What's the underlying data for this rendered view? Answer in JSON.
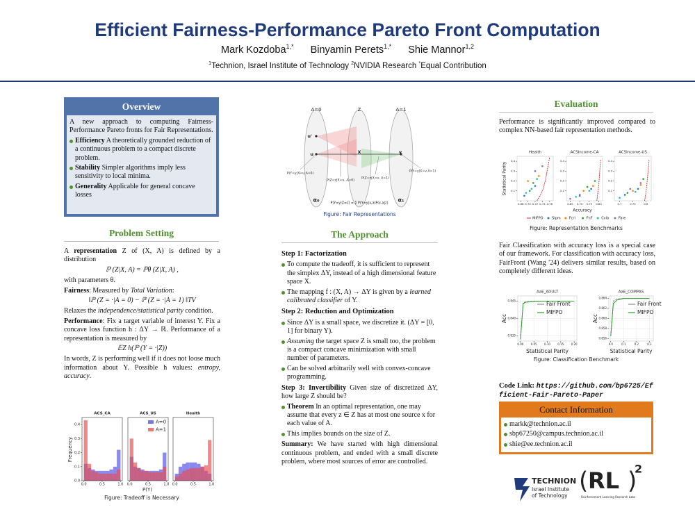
{
  "header": {
    "title": "Efficient Fairness-Performance Pareto Front Computation",
    "authors": [
      {
        "name": "Mark Kozdoba",
        "sup": "1,*"
      },
      {
        "name": "Binyamin Perets",
        "sup": "1,*"
      },
      {
        "name": "Shie Mannor",
        "sup": "1,2"
      }
    ],
    "affiliations": [
      {
        "sup": "1",
        "text": "Technion, Israel Institute of Technology"
      },
      {
        "sup": "2",
        "text": "NVIDIA Research"
      },
      {
        "sup": "*",
        "text": "Equal Contribution"
      }
    ]
  },
  "overview": {
    "title": "Overview",
    "intro": "A new approach to computing Fairness-Performance Pareto fronts for Fair Representations.",
    "items": [
      {
        "term": "Efficiency",
        "text": "A theoretically grounded reduction of a continuous problem to a compact discrete problem."
      },
      {
        "term": "Stability",
        "text": "Simpler algorithms imply less sensitivity to local minima."
      },
      {
        "term": "Generality",
        "text": "Applicable for general concave losses"
      }
    ]
  },
  "problem_setting": {
    "title": "Problem Setting",
    "p0": [
      "A",
      "representation",
      "Z of (X, A) is defined by a distribution"
    ],
    "eq0": "ℙ (Z|X, A) = ℙθ (Z|X, A) ,",
    "p1": "with parameters θ.",
    "p2": [
      "Fairness",
      ": Measured by",
      "Total Variation",
      ":"
    ],
    "eq1": "‖ℙ (Z = ·|A = 0) − ℙ (Z = ·|A = 1) ‖TV",
    "p3": [
      "Relaxes the",
      "independence/statistical parity",
      "condition."
    ],
    "p4": [
      "Performance",
      ": Fix a target variable of interest Y. Fix a concave loss function h : ΔY → ℝ. Performance of a representation is measured by"
    ],
    "eq2": "𝔼Z h(ℙ (Y = ·|Z))",
    "p5": [
      "In words, Z is performing well if it does not loose much information about Y. Possible h values:",
      "entropy, accuracy",
      "."
    ]
  },
  "diagram": {
    "labels": {
      "a0": "A=0",
      "z": "Z",
      "a1": "A=1",
      "u_prime": "u'",
      "u": "u",
      "x": "X",
      "v": "v",
      "py_u": "P(Y=y|X=u,A=0)",
      "pz_u": "P(Z=z|X=u, A=0)",
      "pz_v": "P(Z=z|X=v, A=1)",
      "py_v": "P(Y=y|X=v,A=1)",
      "alpha0": "α₀",
      "alpha1": "α₁",
      "formula": "P(Y=y|Z=z) = Σ P(Y=y|x,a)P(x,a|z)"
    },
    "caption": "Figure: Fair Representations"
  },
  "approach": {
    "title": "The Approach",
    "steps": [
      {
        "title": "Step 1: Factorization",
        "bullets": [
          [
            "To compute the tradeoff, it is sufficient to represent the simplex ΔY, instead of a high dimensional feature space X."
          ],
          [
            "The mapping f : (X, A) → ΔY is given by a",
            "learned calibrated classifier",
            "of Y."
          ]
        ]
      },
      {
        "title": "Step 2: Reduction and Optimization",
        "bullets": [
          [
            "Since ΔY is a small space, we discretize it. (ΔY = [0, 1] for binary Y)."
          ],
          [
            "Assuming",
            "the target space Z is small too, the problem is a compact concave minimization with small number of parameters."
          ],
          [
            "Can be solved arbitrarily well with convex-concave programming."
          ]
        ]
      },
      {
        "title": "Step 3: Invertibility",
        "text": "Given size of discretized ΔY, how large Z should be?",
        "bullets": [
          [
            "Theorem",
            "In an optimal representation, one may assume that every z ∈ Z has at most one source x for each value of A."
          ],
          [
            "This implies bounds on the size of Z."
          ]
        ]
      }
    ],
    "summary": {
      "label": "Summary:",
      "text": "We have started with high dimensional continuous problem, and ended with a small discrete problem, where most sources of error are controlled."
    }
  },
  "evaluation": {
    "title": "Evaluation",
    "intro": "Performance is significantly improved compared to complex NN-based fair representation methods.",
    "classification_text": "Fair Classification with accuracy loss is a special case of our framework. For classification with accuracy loss, FairFront (Wang '24) delivers similar results, based on completely different ideas.",
    "code_label": "Code Link:",
    "code_url": "https://github.com/bp6725/Efficient-Fair-Pareto-Paper"
  },
  "contact": {
    "title": "Contact Information",
    "emails": [
      "markk@technion.ac.il",
      "sbp67250@campus.technion.ac.il",
      "shie@ee.technion.ac.il"
    ]
  },
  "logos": {
    "technion": [
      "TECHNION",
      "Israel Institute",
      "of Technology"
    ],
    "rl": {
      "mark": "RL",
      "sup": "2",
      "text": "Reinforcement Learning Research Labs"
    }
  },
  "figures": {
    "tradeoff": {
      "type": "histogram",
      "caption": "Figure: Tradeoff is Necessary",
      "xlabel": "P(Y)",
      "ylabel": "Frequency",
      "bins": [
        0,
        0.1,
        0.2,
        0.3,
        0.4,
        0.5,
        0.6,
        0.7,
        0.8,
        0.9,
        1
      ],
      "xlim": [
        -0.05,
        1.05
      ],
      "ylim": [
        0,
        0.45
      ],
      "xticks": [
        {
          "value": 0,
          "label": "0.0"
        },
        0.5,
        {
          "value": 1,
          "label": "1.0"
        }
      ],
      "yticks": [
        {
          "value": 0,
          "label": "0.0"
        },
        0.1,
        0.2,
        0.3,
        0.4
      ],
      "series": [
        {
          "name": "A=0",
          "color": "#4a4ae6"
        },
        {
          "name": "A=1",
          "color": "#e64a4a"
        }
      ],
      "panels": [
        {
          "title": "ACS_CA",
          "values": [
            [
              0.12,
              0.09,
              0.08,
              0.07,
              0.07,
              0.07,
              0.07,
              0.08,
              0.1,
              0.22
            ],
            [
              0.43,
              0.12,
              0.07,
              0.06,
              0.05,
              0.05,
              0.05,
              0.05,
              0.05,
              0.08
            ]
          ]
        },
        {
          "title": "ACS_US",
          "values": [
            [
              0.17,
              0.1,
              0.09,
              0.08,
              0.07,
              0.07,
              0.07,
              0.07,
              0.08,
              0.2
            ],
            [
              0.3,
              0.13,
              0.09,
              0.07,
              0.07,
              0.06,
              0.06,
              0.06,
              0.06,
              0.1
            ]
          ]
        },
        {
          "title": "Health",
          "values": [
            [
              0.05,
              0.1,
              0.12,
              0.13,
              0.13,
              0.13,
              0.12,
              0.1,
              0.07,
              0.05
            ],
            [
              0.03,
              0.05,
              0.07,
              0.08,
              0.09,
              0.09,
              0.09,
              0.1,
              0.11,
              0.29
            ]
          ]
        }
      ]
    },
    "representation_benchmarks": {
      "type": "scatter",
      "caption": "Figure: Representation Benchmarks",
      "xlabel": "Accuracy",
      "ylabel": "Statistical Parity",
      "series": [
        {
          "name": "MIFPO",
          "color": "#d62728",
          "mark": "line"
        },
        {
          "name": "Sipm",
          "color": "#1f77b4",
          "mark": "point"
        },
        {
          "name": "Fcrl",
          "color": "#ff7f0e",
          "mark": "point"
        },
        {
          "name": "FnF",
          "color": "#2ca02c",
          "mark": "point"
        },
        {
          "name": "Cvib",
          "color": "#17becf",
          "mark": "point"
        },
        {
          "name": "Fare",
          "color": "#9467bd",
          "mark": "point"
        }
      ],
      "panels": [
        {
          "title": "Health",
          "xlim": [
            0.67,
            0.77
          ],
          "ylim": [
            0,
            0.45
          ],
          "xticks": [
            0.68,
            {
              "value": 0.7,
              "label": "0.70"
            },
            0.72,
            0.74,
            0.76
          ],
          "yticks": [
            0.1,
            0.2,
            0.3,
            0.4
          ],
          "points": [
            {
              "x": [
                0.725,
                0.735,
                0.742,
                0.748,
                0.752,
                0.756,
                0.76
              ],
              "values": [
                0.0,
                0.06,
                0.12,
                0.2,
                0.28,
                0.36,
                0.44
              ]
            },
            {
              "x": [
                0.69,
                0.72
              ],
              "values": [
                0.05,
                0.15
              ]
            },
            {
              "x": [
                0.7,
                0.73
              ],
              "values": [
                0.2,
                0.25
              ]
            },
            {
              "x": [
                0.705,
                0.715
              ],
              "values": [
                0.1,
                0.18
              ]
            },
            {
              "x": [
                0.71,
                0.725,
                0.695
              ],
              "values": [
                0.12,
                0.22,
                0.08
              ]
            },
            {
              "x": [
                0.72,
                0.74
              ],
              "values": [
                0.3,
                0.35
              ]
            }
          ]
        },
        {
          "title": "ACSIncome-CA",
          "xlim": [
            0.63,
            0.82
          ],
          "ylim": [
            0,
            0.45
          ],
          "xticks": [
            0.65,
            {
              "value": 0.7,
              "label": "0.70"
            },
            0.75,
            {
              "value": 0.8,
              "label": "0.80"
            }
          ],
          "yticks": [
            0.1,
            0.2,
            0.3,
            0.4
          ],
          "points": [
            {
              "x": [
                0.79,
                0.795,
                0.8,
                0.803,
                0.806,
                0.81
              ],
              "values": [
                0,
                0.08,
                0.16,
                0.24,
                0.32,
                0.42
              ]
            },
            {
              "x": [
                0.7,
                0.76
              ],
              "values": [
                0.05,
                0.12
              ]
            },
            {
              "x": [
                0.72,
                0.77
              ],
              "values": [
                0.1,
                0.15
              ]
            },
            {
              "x": [
                0.74,
                0.78
              ],
              "values": [
                0.14,
                0.2
              ]
            },
            {
              "x": [
                0.68,
                0.75
              ],
              "values": [
                0.04,
                0.1
              ]
            },
            {
              "x": [
                0.65,
                0.7
              ],
              "values": [
                0.02,
                0.06
              ]
            }
          ]
        },
        {
          "title": "ACSIncome-US",
          "xlim": [
            0.68,
            0.82
          ],
          "ylim": [
            0,
            0.45
          ],
          "xticks": [
            0.7,
            0.75,
            0.8
          ],
          "yticks": [
            0.1,
            0.2,
            0.3,
            0.4
          ],
          "points": [
            {
              "x": [
                0.795,
                0.8,
                0.803,
                0.806,
                0.809,
                0.812
              ],
              "values": [
                0,
                0.08,
                0.16,
                0.24,
                0.32,
                0.42
              ]
            },
            {
              "x": [
                0.72,
                0.77
              ],
              "values": [
                0.06,
                0.12
              ]
            },
            {
              "x": [
                0.75,
                0.78
              ],
              "values": [
                0.1,
                0.16
              ]
            },
            {
              "x": [
                0.73,
                0.79
              ],
              "values": [
                0.08,
                0.22
              ]
            },
            {
              "x": [
                0.7,
                0.76
              ],
              "values": [
                0.03,
                0.09
              ]
            },
            {
              "x": [
                0.74,
                0.78
              ],
              "values": [
                0.12,
                0.18
              ]
            }
          ]
        }
      ]
    },
    "classification_benchmark": {
      "type": "line",
      "caption": "Figure: Classification Benchmark",
      "xlabel": "Statistical Parity",
      "ylabel": "Acc",
      "grid": true,
      "series": [
        {
          "name": "Fair Front",
          "color": "#8a8a8a"
        },
        {
          "name": "MIFPO",
          "color": "#2ca02c"
        }
      ],
      "panels": [
        {
          "title": "AaE_ADULT",
          "xlim": [
            -0.01,
            0.21
          ],
          "ylim": [
            0.8335,
            0.8465
          ],
          "xticks": [
            {
              "value": 0,
              "label": "0.00"
            },
            0.05,
            {
              "value": 0.1,
              "label": "0.10"
            },
            0.15,
            {
              "value": 0.2,
              "label": "0.20"
            }
          ],
          "yticks": [
            0.835,
            {
              "value": 0.84,
              "label": "0.840"
            },
            0.845
          ],
          "x": [
            0,
            0.01,
            0.02,
            0.05,
            0.1,
            0.15,
            0.2
          ],
          "lines": [
            {
              "values": [
                0.834,
                0.8445,
                0.8448,
                0.845,
                0.845,
                0.845,
                0.845
              ]
            },
            {
              "values": [
                0.834,
                0.8443,
                0.8447,
                0.8449,
                0.845,
                0.845,
                0.845
              ]
            }
          ]
        },
        {
          "title": "AaE_COMPAS",
          "xlim": [
            -0.015,
            0.33
          ],
          "ylim": [
            0.8555,
            0.8645
          ],
          "xticks": [
            {
              "value": 0,
              "label": "0.0"
            },
            0.1,
            0.2,
            0.3
          ],
          "yticks": [
            0.856,
            0.858,
            {
              "value": 0.86,
              "label": "0.860"
            },
            0.862,
            0.864
          ],
          "x": [
            0,
            0.02,
            0.05,
            0.1,
            0.2,
            0.3
          ],
          "lines": [
            {
              "values": [
                0.8565,
                0.8635,
                0.8639,
                0.864,
                0.864,
                0.864
              ]
            },
            {
              "values": [
                0.8565,
                0.863,
                0.8637,
                0.864,
                0.864,
                0.864
              ]
            }
          ]
        }
      ]
    }
  }
}
